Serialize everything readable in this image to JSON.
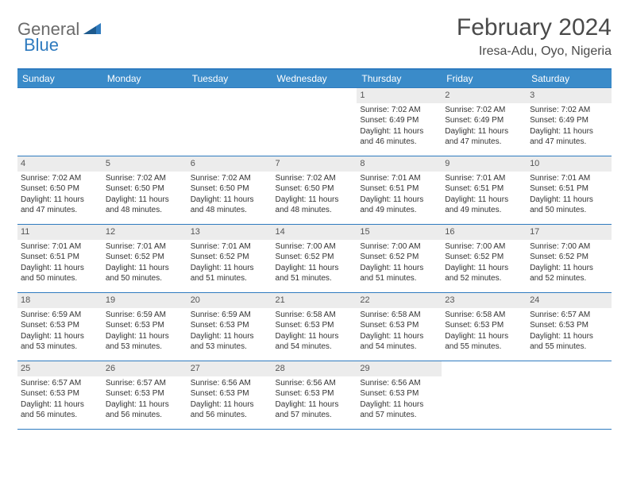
{
  "logo": {
    "part1": "General",
    "part2": "Blue"
  },
  "title": "February 2024",
  "location": "Iresa-Adu, Oyo, Nigeria",
  "colors": {
    "header_bg": "#3a8bc9",
    "border": "#2f7bbf",
    "band_bg": "#ececec",
    "page_bg": "#ffffff",
    "text": "#333333",
    "logo_gray": "#6b6b6b",
    "logo_blue": "#2f7bbf"
  },
  "day_headers": [
    "Sunday",
    "Monday",
    "Tuesday",
    "Wednesday",
    "Thursday",
    "Friday",
    "Saturday"
  ],
  "weeks": [
    [
      {
        "date": "",
        "sunrise": "",
        "sunset": "",
        "daylight": ""
      },
      {
        "date": "",
        "sunrise": "",
        "sunset": "",
        "daylight": ""
      },
      {
        "date": "",
        "sunrise": "",
        "sunset": "",
        "daylight": ""
      },
      {
        "date": "",
        "sunrise": "",
        "sunset": "",
        "daylight": ""
      },
      {
        "date": "1",
        "sunrise": "Sunrise: 7:02 AM",
        "sunset": "Sunset: 6:49 PM",
        "daylight": "Daylight: 11 hours and 46 minutes."
      },
      {
        "date": "2",
        "sunrise": "Sunrise: 7:02 AM",
        "sunset": "Sunset: 6:49 PM",
        "daylight": "Daylight: 11 hours and 47 minutes."
      },
      {
        "date": "3",
        "sunrise": "Sunrise: 7:02 AM",
        "sunset": "Sunset: 6:49 PM",
        "daylight": "Daylight: 11 hours and 47 minutes."
      }
    ],
    [
      {
        "date": "4",
        "sunrise": "Sunrise: 7:02 AM",
        "sunset": "Sunset: 6:50 PM",
        "daylight": "Daylight: 11 hours and 47 minutes."
      },
      {
        "date": "5",
        "sunrise": "Sunrise: 7:02 AM",
        "sunset": "Sunset: 6:50 PM",
        "daylight": "Daylight: 11 hours and 48 minutes."
      },
      {
        "date": "6",
        "sunrise": "Sunrise: 7:02 AM",
        "sunset": "Sunset: 6:50 PM",
        "daylight": "Daylight: 11 hours and 48 minutes."
      },
      {
        "date": "7",
        "sunrise": "Sunrise: 7:02 AM",
        "sunset": "Sunset: 6:50 PM",
        "daylight": "Daylight: 11 hours and 48 minutes."
      },
      {
        "date": "8",
        "sunrise": "Sunrise: 7:01 AM",
        "sunset": "Sunset: 6:51 PM",
        "daylight": "Daylight: 11 hours and 49 minutes."
      },
      {
        "date": "9",
        "sunrise": "Sunrise: 7:01 AM",
        "sunset": "Sunset: 6:51 PM",
        "daylight": "Daylight: 11 hours and 49 minutes."
      },
      {
        "date": "10",
        "sunrise": "Sunrise: 7:01 AM",
        "sunset": "Sunset: 6:51 PM",
        "daylight": "Daylight: 11 hours and 50 minutes."
      }
    ],
    [
      {
        "date": "11",
        "sunrise": "Sunrise: 7:01 AM",
        "sunset": "Sunset: 6:51 PM",
        "daylight": "Daylight: 11 hours and 50 minutes."
      },
      {
        "date": "12",
        "sunrise": "Sunrise: 7:01 AM",
        "sunset": "Sunset: 6:52 PM",
        "daylight": "Daylight: 11 hours and 50 minutes."
      },
      {
        "date": "13",
        "sunrise": "Sunrise: 7:01 AM",
        "sunset": "Sunset: 6:52 PM",
        "daylight": "Daylight: 11 hours and 51 minutes."
      },
      {
        "date": "14",
        "sunrise": "Sunrise: 7:00 AM",
        "sunset": "Sunset: 6:52 PM",
        "daylight": "Daylight: 11 hours and 51 minutes."
      },
      {
        "date": "15",
        "sunrise": "Sunrise: 7:00 AM",
        "sunset": "Sunset: 6:52 PM",
        "daylight": "Daylight: 11 hours and 51 minutes."
      },
      {
        "date": "16",
        "sunrise": "Sunrise: 7:00 AM",
        "sunset": "Sunset: 6:52 PM",
        "daylight": "Daylight: 11 hours and 52 minutes."
      },
      {
        "date": "17",
        "sunrise": "Sunrise: 7:00 AM",
        "sunset": "Sunset: 6:52 PM",
        "daylight": "Daylight: 11 hours and 52 minutes."
      }
    ],
    [
      {
        "date": "18",
        "sunrise": "Sunrise: 6:59 AM",
        "sunset": "Sunset: 6:53 PM",
        "daylight": "Daylight: 11 hours and 53 minutes."
      },
      {
        "date": "19",
        "sunrise": "Sunrise: 6:59 AM",
        "sunset": "Sunset: 6:53 PM",
        "daylight": "Daylight: 11 hours and 53 minutes."
      },
      {
        "date": "20",
        "sunrise": "Sunrise: 6:59 AM",
        "sunset": "Sunset: 6:53 PM",
        "daylight": "Daylight: 11 hours and 53 minutes."
      },
      {
        "date": "21",
        "sunrise": "Sunrise: 6:58 AM",
        "sunset": "Sunset: 6:53 PM",
        "daylight": "Daylight: 11 hours and 54 minutes."
      },
      {
        "date": "22",
        "sunrise": "Sunrise: 6:58 AM",
        "sunset": "Sunset: 6:53 PM",
        "daylight": "Daylight: 11 hours and 54 minutes."
      },
      {
        "date": "23",
        "sunrise": "Sunrise: 6:58 AM",
        "sunset": "Sunset: 6:53 PM",
        "daylight": "Daylight: 11 hours and 55 minutes."
      },
      {
        "date": "24",
        "sunrise": "Sunrise: 6:57 AM",
        "sunset": "Sunset: 6:53 PM",
        "daylight": "Daylight: 11 hours and 55 minutes."
      }
    ],
    [
      {
        "date": "25",
        "sunrise": "Sunrise: 6:57 AM",
        "sunset": "Sunset: 6:53 PM",
        "daylight": "Daylight: 11 hours and 56 minutes."
      },
      {
        "date": "26",
        "sunrise": "Sunrise: 6:57 AM",
        "sunset": "Sunset: 6:53 PM",
        "daylight": "Daylight: 11 hours and 56 minutes."
      },
      {
        "date": "27",
        "sunrise": "Sunrise: 6:56 AM",
        "sunset": "Sunset: 6:53 PM",
        "daylight": "Daylight: 11 hours and 56 minutes."
      },
      {
        "date": "28",
        "sunrise": "Sunrise: 6:56 AM",
        "sunset": "Sunset: 6:53 PM",
        "daylight": "Daylight: 11 hours and 57 minutes."
      },
      {
        "date": "29",
        "sunrise": "Sunrise: 6:56 AM",
        "sunset": "Sunset: 6:53 PM",
        "daylight": "Daylight: 11 hours and 57 minutes."
      },
      {
        "date": "",
        "sunrise": "",
        "sunset": "",
        "daylight": ""
      },
      {
        "date": "",
        "sunrise": "",
        "sunset": "",
        "daylight": ""
      }
    ]
  ]
}
